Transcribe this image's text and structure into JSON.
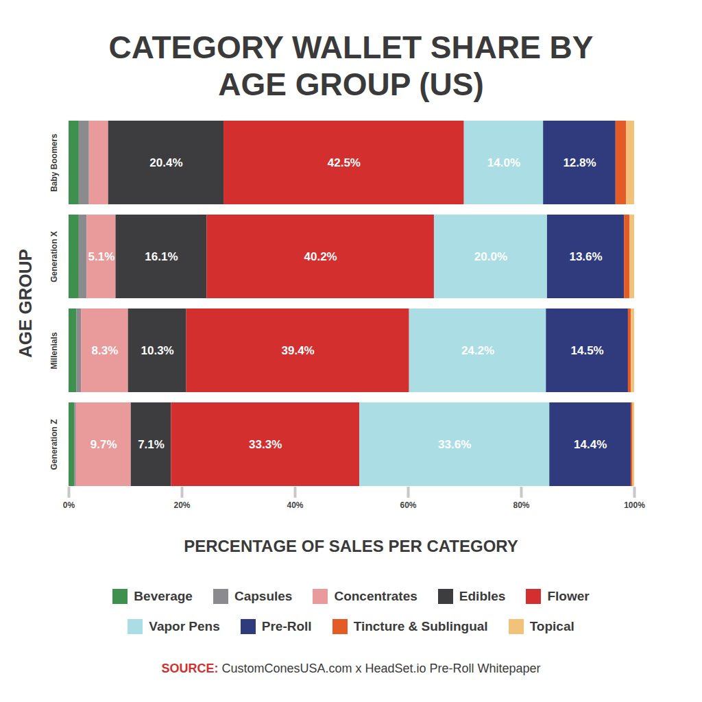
{
  "chart_data": {
    "type": "bar",
    "title": "CATEGORY WALLET SHARE BY AGE GROUP (US)",
    "xlabel": "PERCENTAGE OF SALES PER CATEGORY",
    "ylabel": "AGE GROUP",
    "source_label": "SOURCE:",
    "source": "CustomConesUSA.com x HeadSet.io Pre-Roll Whitepaper",
    "orientation": "horizontal",
    "stacked": true,
    "data_labels": true,
    "grid": false,
    "legend": "bottom",
    "categories": [
      "Baby Boomers",
      "Generation X",
      "Millenials",
      "Generation Z"
    ],
    "xlim": [
      0,
      100
    ],
    "xticks": [
      {
        "value": 0,
        "label": "0%"
      },
      {
        "value": 20,
        "label": "20%"
      },
      {
        "value": 40,
        "label": "40%"
      },
      {
        "value": 60,
        "label": "60%"
      },
      {
        "value": 80,
        "label": "80%"
      },
      {
        "value": 100,
        "label": "100%"
      }
    ],
    "series": [
      {
        "name": "Beverage",
        "color": "#3f8f4f",
        "values": [
          1.8,
          1.8,
          1.4,
          1.0
        ],
        "value_labels": [
          null,
          null,
          null,
          null
        ]
      },
      {
        "name": "Capsules",
        "color": "#8a8a8f",
        "values": [
          1.8,
          1.4,
          0.8,
          0.3
        ],
        "value_labels": [
          null,
          null,
          null,
          null
        ]
      },
      {
        "name": "Concentrates",
        "color": "#e99a9a",
        "values": [
          3.4,
          5.1,
          8.3,
          9.7
        ],
        "value_labels": [
          null,
          "5.1%",
          "8.3%",
          "9.7%"
        ]
      },
      {
        "name": "Edibles",
        "color": "#3d3d3f",
        "values": [
          20.4,
          16.1,
          10.3,
          7.1
        ],
        "value_labels": [
          "20.4%",
          "16.1%",
          "10.3%",
          "7.1%"
        ]
      },
      {
        "name": "Flower",
        "color": "#d32f2f",
        "values": [
          42.5,
          40.2,
          39.4,
          33.3
        ],
        "value_labels": [
          "42.5%",
          "40.2%",
          "39.4%",
          "33.3%"
        ]
      },
      {
        "name": "Vapor Pens",
        "color": "#aadde4",
        "values": [
          14.0,
          20.0,
          24.2,
          33.6
        ],
        "value_labels": [
          "14.0%",
          "20.0%",
          "24.2%",
          "33.6%"
        ]
      },
      {
        "name": "Pre-Roll",
        "color": "#2f3b7c",
        "values": [
          12.8,
          13.6,
          14.5,
          14.4
        ],
        "value_labels": [
          "12.8%",
          "13.6%",
          "14.5%",
          "14.4%"
        ]
      },
      {
        "name": "Tincture & Sublingual",
        "color": "#e35b27",
        "values": [
          1.9,
          1.0,
          0.5,
          0.3
        ],
        "value_labels": [
          null,
          null,
          null,
          null
        ]
      },
      {
        "name": "Topical",
        "color": "#f2c27a",
        "values": [
          1.4,
          0.8,
          0.6,
          0.3
        ],
        "value_labels": [
          null,
          null,
          null,
          null
        ]
      }
    ]
  }
}
